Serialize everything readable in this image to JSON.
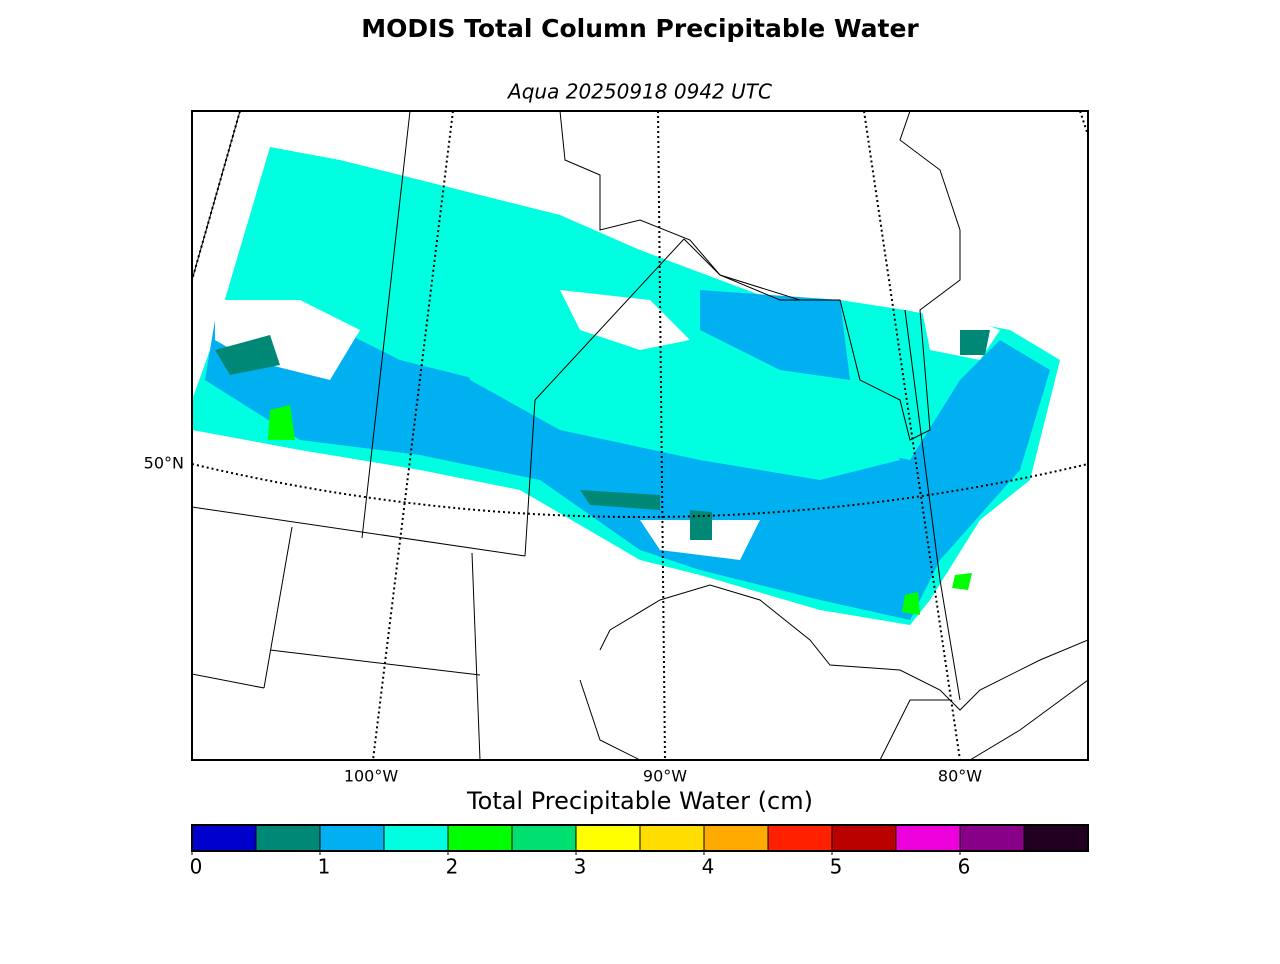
{
  "title": "MODIS Total Column Precipitable Water",
  "subtitle": "Aqua 20250918 0942 UTC",
  "map": {
    "lat_labels": [
      "50°N"
    ],
    "lon_labels": [
      "100°W",
      "90°W",
      "80°W"
    ]
  },
  "colorbar": {
    "label": "Total Precipitable Water (cm)",
    "levels": [
      0,
      0.5,
      1,
      1.5,
      2,
      2.5,
      3,
      3.5,
      4,
      4.5,
      5,
      5.5,
      6,
      6.5,
      7
    ],
    "colors": [
      "#0000cc",
      "#008877",
      "#00b0f0",
      "#00ffe0",
      "#00ff00",
      "#00e070",
      "#ffff00",
      "#ffdd00",
      "#ffaa00",
      "#ff2000",
      "#bb0000",
      "#ee00dd",
      "#880088",
      "#220022"
    ],
    "ticks": [
      0,
      1,
      2,
      3,
      4,
      5,
      6
    ]
  }
}
